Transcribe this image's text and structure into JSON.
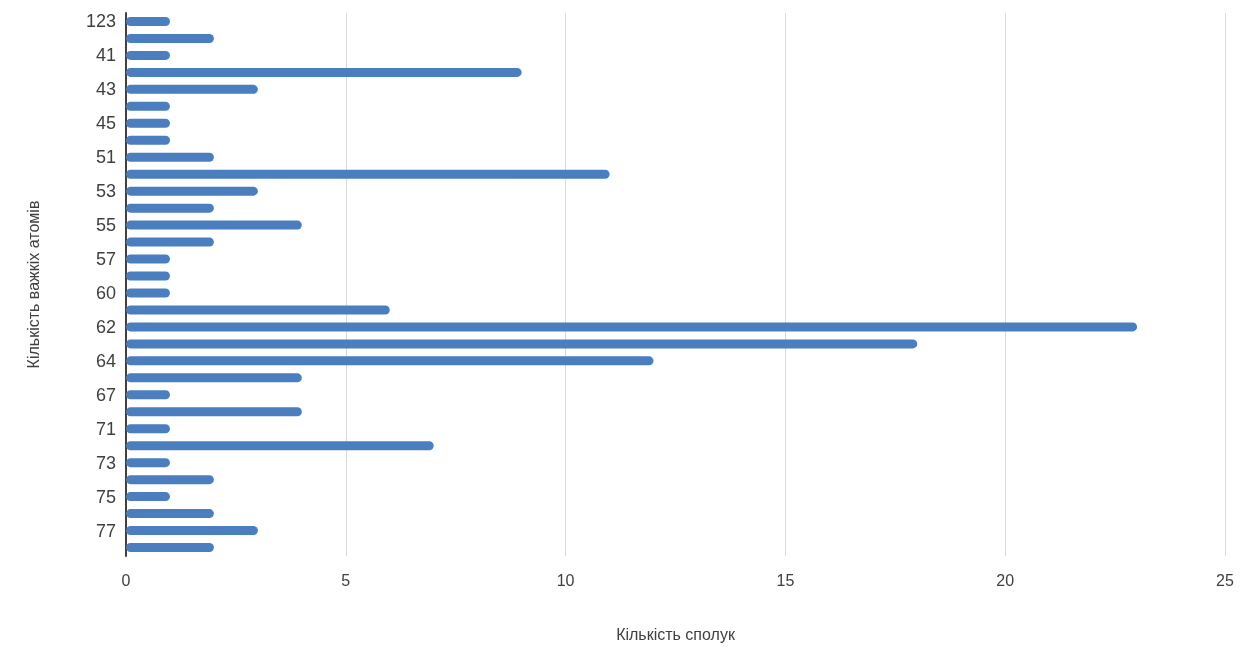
{
  "chart_data": {
    "type": "bar",
    "orientation": "horizontal",
    "xlabel": "Кількість сполук",
    "ylabel": "Кількість важкіх атомів",
    "categories": [
      "123",
      null,
      "41",
      null,
      "43",
      null,
      "45",
      null,
      "51",
      null,
      "53",
      null,
      "55",
      null,
      "57",
      null,
      "60",
      null,
      "62",
      null,
      "64",
      null,
      "67",
      null,
      "71",
      null,
      "73",
      null,
      "75",
      null,
      "77",
      null
    ],
    "values": [
      1,
      2,
      1,
      9,
      3,
      1,
      1,
      1,
      2,
      11,
      3,
      2,
      4,
      2,
      1,
      1,
      1,
      6,
      23,
      18,
      12,
      4,
      1,
      4,
      1,
      7,
      1,
      2,
      1,
      2,
      3,
      2
    ],
    "color": "#4a7ebf",
    "xlim": [
      0,
      25
    ],
    "xticks": [
      0,
      5,
      10,
      15,
      20,
      25
    ],
    "grid": "x"
  }
}
